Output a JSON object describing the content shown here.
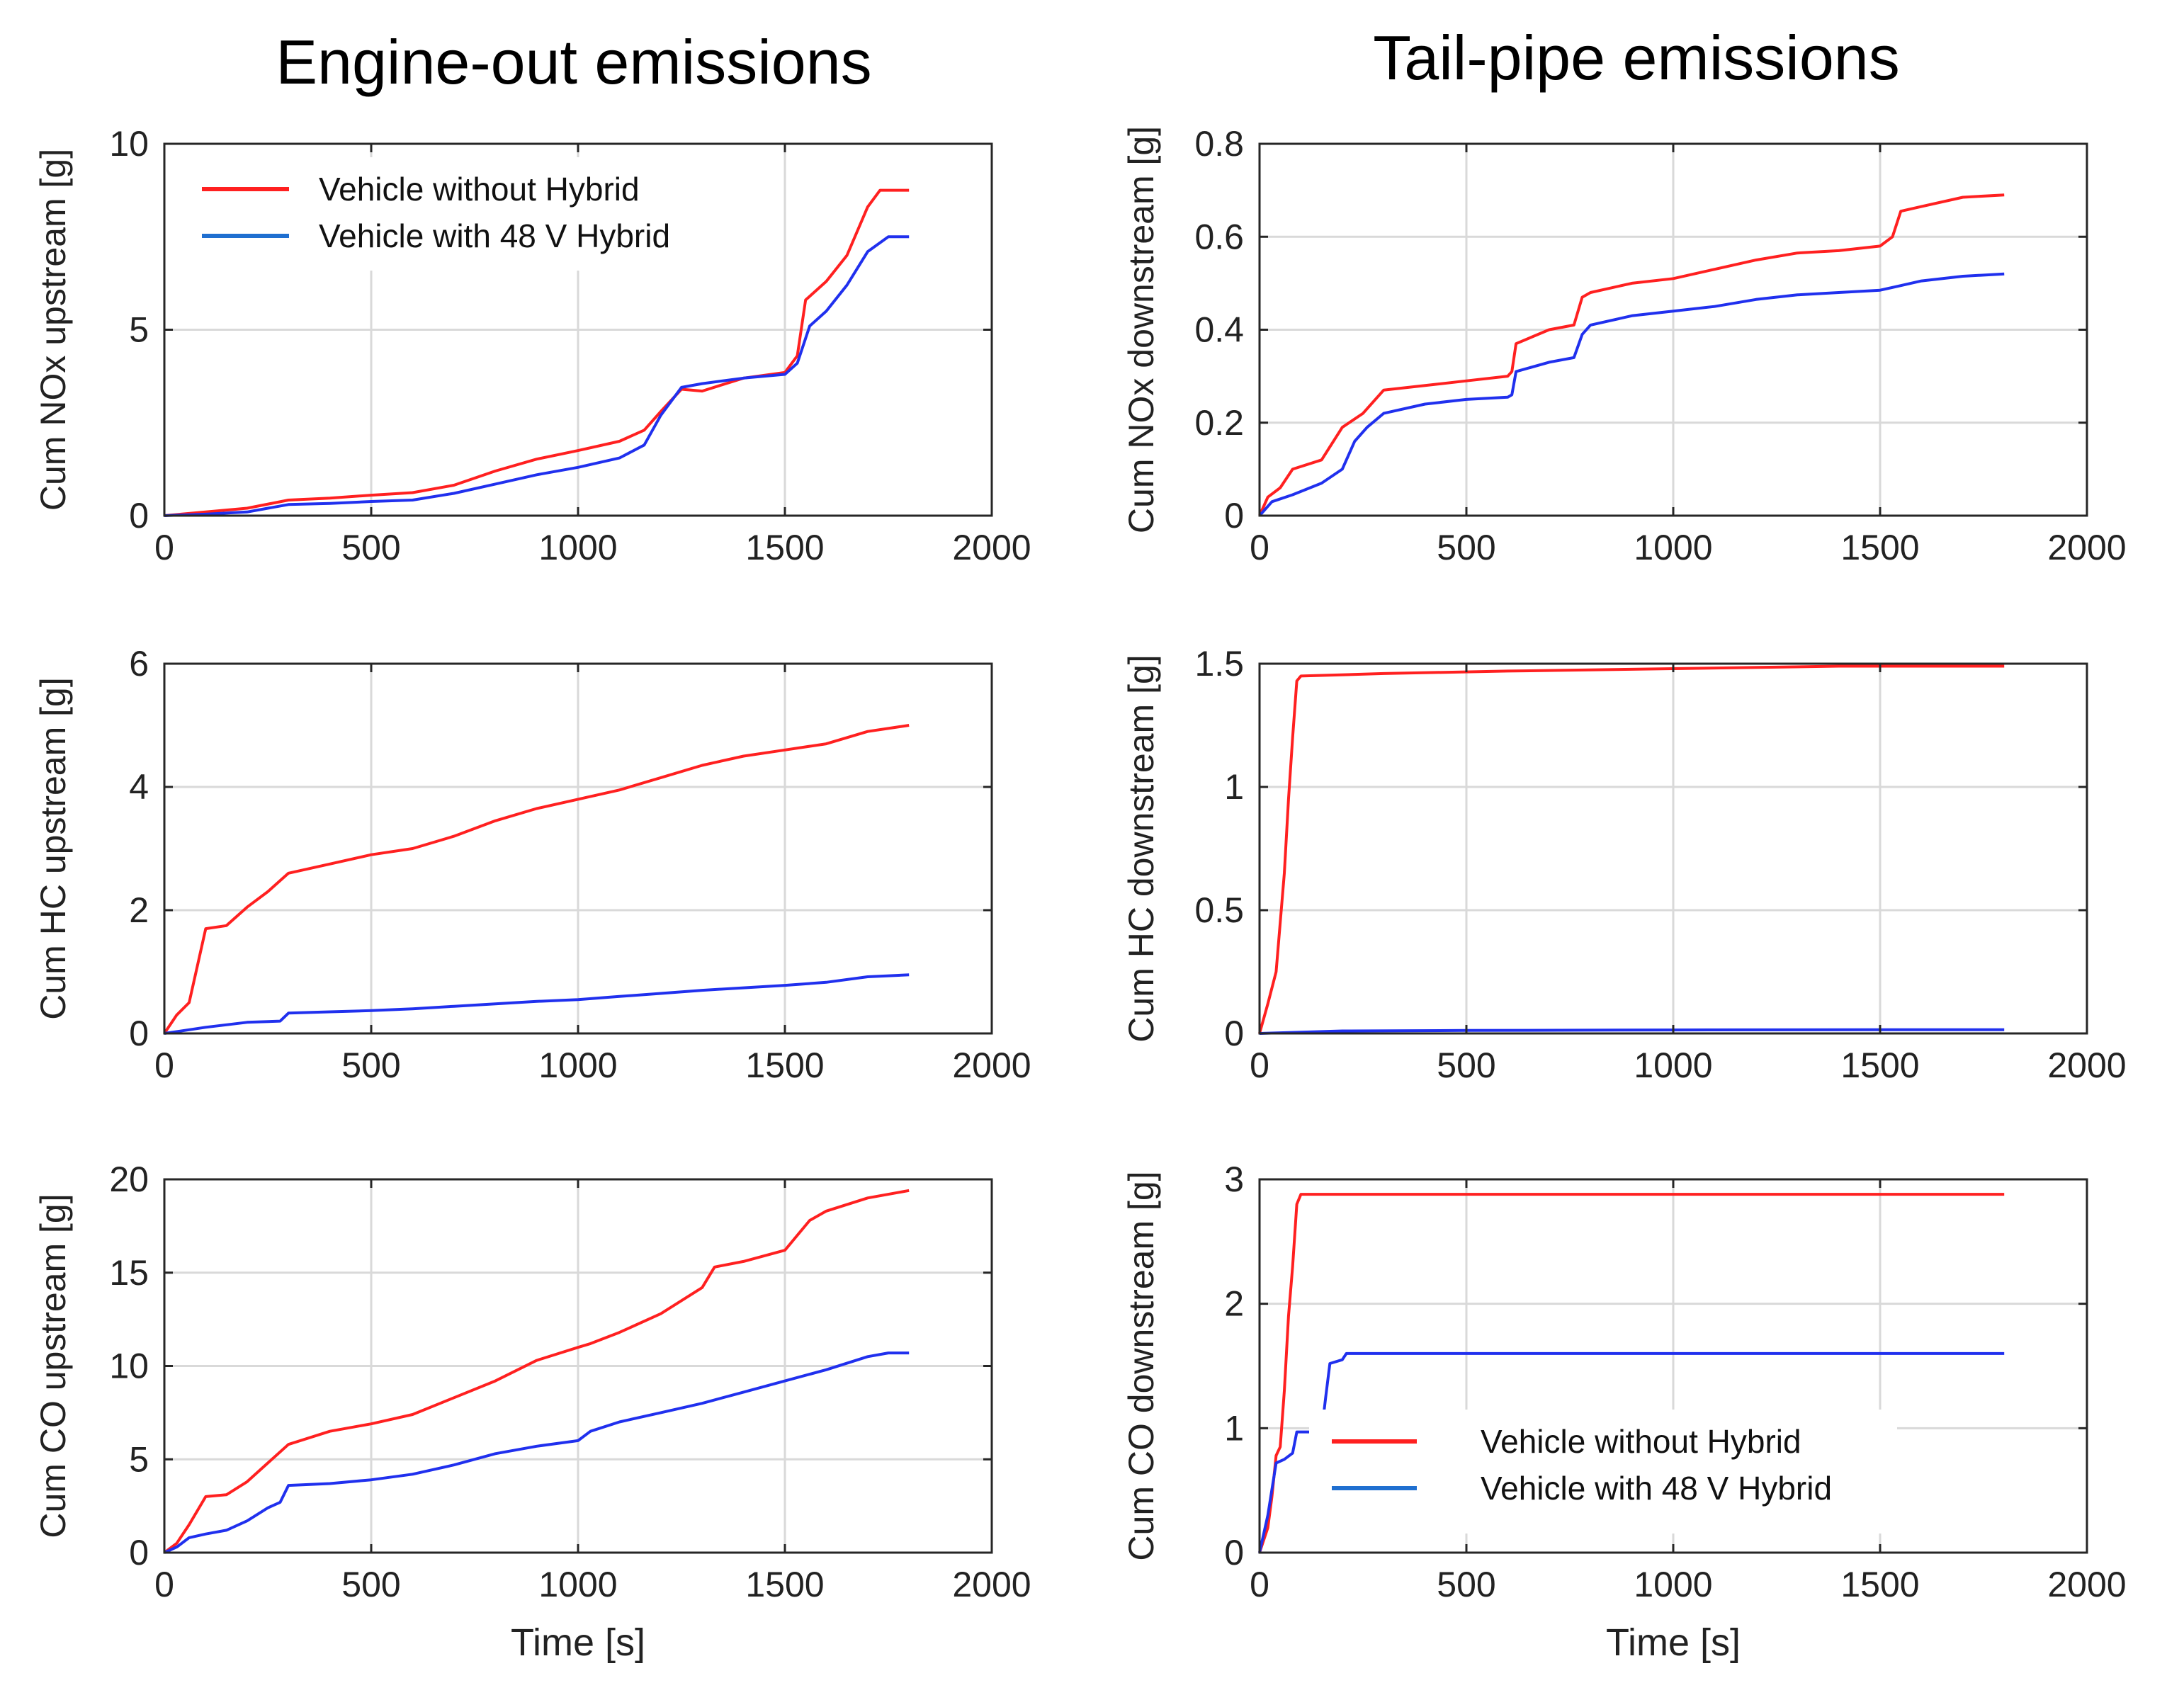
{
  "titles": {
    "left": "Engine-out emissions",
    "right": "Tail-pipe emissions"
  },
  "legend_entries": [
    "Vehicle without Hybrid",
    "Vehicle with 48 V Hybrid"
  ],
  "colors": {
    "without_hybrid": "#ff2020",
    "with_hybrid": "#2030ee",
    "legend_blue": "#1f6fd0"
  },
  "chart_data": [
    {
      "id": "nox-up",
      "type": "line",
      "column": "left",
      "ylabel": "Cum NOx upstream [g]",
      "xlabel": "",
      "xlim": [
        0,
        2000
      ],
      "ylim": [
        0,
        10
      ],
      "xticks": [
        0,
        500,
        1000,
        1500,
        2000
      ],
      "yticks": [
        0,
        5,
        10
      ],
      "xtick_labels": [
        "0",
        "500",
        "1000",
        "1500",
        "2000"
      ],
      "ytick_labels": [
        "0",
        "5",
        "10"
      ],
      "legend": "top-left",
      "grid": true,
      "series": [
        {
          "name": "Vehicle without Hybrid",
          "color": "#ff2020",
          "x": [
            0,
            100,
            200,
            300,
            400,
            500,
            600,
            700,
            800,
            900,
            1000,
            1100,
            1160,
            1200,
            1250,
            1300,
            1400,
            1500,
            1530,
            1550,
            1600,
            1650,
            1700,
            1730,
            1800
          ],
          "y": [
            0,
            0.1,
            0.2,
            0.42,
            0.47,
            0.55,
            0.62,
            0.82,
            1.2,
            1.52,
            1.75,
            2.0,
            2.3,
            2.8,
            3.4,
            3.35,
            3.7,
            3.85,
            4.3,
            5.8,
            6.3,
            7.0,
            8.3,
            8.75,
            8.75
          ]
        },
        {
          "name": "Vehicle with 48 V Hybrid",
          "color": "#2030ee",
          "x": [
            0,
            100,
            200,
            300,
            400,
            500,
            600,
            700,
            800,
            900,
            1000,
            1100,
            1160,
            1200,
            1250,
            1300,
            1400,
            1500,
            1530,
            1560,
            1600,
            1650,
            1700,
            1750,
            1800
          ],
          "y": [
            0,
            0.04,
            0.1,
            0.3,
            0.33,
            0.38,
            0.42,
            0.6,
            0.85,
            1.1,
            1.3,
            1.55,
            1.9,
            2.7,
            3.45,
            3.55,
            3.7,
            3.8,
            4.1,
            5.1,
            5.5,
            6.2,
            7.1,
            7.5,
            7.5
          ]
        }
      ]
    },
    {
      "id": "nox-down",
      "type": "line",
      "column": "right",
      "ylabel": "Cum NOx downstream [g]",
      "xlabel": "",
      "xlim": [
        0,
        2000
      ],
      "ylim": [
        0,
        0.8
      ],
      "xticks": [
        0,
        500,
        1000,
        1500,
        2000
      ],
      "yticks": [
        0,
        0.2,
        0.4,
        0.6,
        0.8
      ],
      "xtick_labels": [
        "0",
        "500",
        "1000",
        "1500",
        "2000"
      ],
      "ytick_labels": [
        "0",
        "0.2",
        "0.4",
        "0.6",
        "0.8"
      ],
      "grid": true,
      "series": [
        {
          "name": "Vehicle without Hybrid",
          "color": "#ff2020",
          "x": [
            0,
            20,
            50,
            80,
            150,
            200,
            250,
            300,
            400,
            500,
            600,
            610,
            620,
            700,
            760,
            780,
            800,
            900,
            1000,
            1100,
            1200,
            1300,
            1400,
            1500,
            1530,
            1550,
            1600,
            1700,
            1800
          ],
          "y": [
            0,
            0.04,
            0.06,
            0.1,
            0.12,
            0.19,
            0.22,
            0.27,
            0.28,
            0.29,
            0.3,
            0.31,
            0.37,
            0.4,
            0.41,
            0.47,
            0.48,
            0.5,
            0.51,
            0.53,
            0.55,
            0.565,
            0.57,
            0.58,
            0.6,
            0.655,
            0.665,
            0.685,
            0.69
          ]
        },
        {
          "name": "Vehicle with 48 V Hybrid",
          "color": "#2030ee",
          "x": [
            0,
            30,
            80,
            150,
            200,
            230,
            260,
            300,
            400,
            500,
            600,
            610,
            620,
            700,
            760,
            780,
            800,
            900,
            1000,
            1100,
            1200,
            1300,
            1400,
            1500,
            1550,
            1600,
            1700,
            1800
          ],
          "y": [
            0,
            0.03,
            0.045,
            0.07,
            0.1,
            0.16,
            0.19,
            0.22,
            0.24,
            0.25,
            0.255,
            0.26,
            0.31,
            0.33,
            0.34,
            0.39,
            0.41,
            0.43,
            0.44,
            0.45,
            0.465,
            0.475,
            0.48,
            0.485,
            0.495,
            0.505,
            0.515,
            0.52
          ]
        }
      ]
    },
    {
      "id": "hc-up",
      "type": "line",
      "column": "left",
      "ylabel": "Cum HC upstream [g]",
      "xlabel": "",
      "xlim": [
        0,
        2000
      ],
      "ylim": [
        0,
        6
      ],
      "xticks": [
        0,
        500,
        1000,
        1500,
        2000
      ],
      "yticks": [
        0,
        2,
        4,
        6
      ],
      "xtick_labels": [
        "0",
        "500",
        "1000",
        "1500",
        "2000"
      ],
      "ytick_labels": [
        "0",
        "2",
        "4",
        "6"
      ],
      "grid": true,
      "series": [
        {
          "name": "Vehicle without Hybrid",
          "color": "#ff2020",
          "x": [
            0,
            30,
            60,
            80,
            100,
            150,
            200,
            250,
            300,
            400,
            500,
            600,
            700,
            800,
            900,
            1000,
            1100,
            1200,
            1300,
            1400,
            1500,
            1600,
            1700,
            1800
          ],
          "y": [
            0,
            0.3,
            0.5,
            1.1,
            1.7,
            1.75,
            2.05,
            2.3,
            2.6,
            2.75,
            2.9,
            3.0,
            3.2,
            3.45,
            3.65,
            3.8,
            3.95,
            4.15,
            4.35,
            4.5,
            4.6,
            4.7,
            4.9,
            5.0
          ]
        },
        {
          "name": "Vehicle with 48 V Hybrid",
          "color": "#2030ee",
          "x": [
            0,
            50,
            100,
            200,
            280,
            300,
            400,
            500,
            600,
            700,
            800,
            900,
            1000,
            1100,
            1200,
            1300,
            1400,
            1500,
            1600,
            1700,
            1800
          ],
          "y": [
            0,
            0.05,
            0.1,
            0.18,
            0.2,
            0.33,
            0.35,
            0.37,
            0.4,
            0.44,
            0.48,
            0.52,
            0.55,
            0.6,
            0.65,
            0.7,
            0.74,
            0.78,
            0.83,
            0.92,
            0.95
          ]
        }
      ]
    },
    {
      "id": "hc-down",
      "type": "line",
      "column": "right",
      "ylabel": "Cum HC downstream [g]",
      "xlabel": "",
      "xlim": [
        0,
        2000
      ],
      "ylim": [
        0,
        1.5
      ],
      "xticks": [
        0,
        500,
        1000,
        1500,
        2000
      ],
      "yticks": [
        0,
        0.5,
        1,
        1.5
      ],
      "xtick_labels": [
        "0",
        "500",
        "1000",
        "1500",
        "2000"
      ],
      "ytick_labels": [
        "0",
        "0.5",
        "1",
        "1.5"
      ],
      "grid": true,
      "series": [
        {
          "name": "Vehicle without Hybrid",
          "color": "#ff2020",
          "x": [
            0,
            20,
            40,
            60,
            70,
            80,
            90,
            100,
            300,
            600,
            1000,
            1400,
            1800
          ],
          "y": [
            0,
            0.12,
            0.25,
            0.65,
            0.95,
            1.2,
            1.43,
            1.45,
            1.46,
            1.47,
            1.48,
            1.49,
            1.49
          ]
        },
        {
          "name": "Vehicle with 48 V Hybrid",
          "color": "#2030ee",
          "x": [
            0,
            100,
            200,
            500,
            1000,
            1500,
            1800
          ],
          "y": [
            0,
            0.005,
            0.01,
            0.012,
            0.014,
            0.015,
            0.015
          ]
        }
      ]
    },
    {
      "id": "co-up",
      "type": "line",
      "column": "left",
      "ylabel": "Cum CO upstream [g]",
      "xlabel": "Time [s]",
      "xlim": [
        0,
        2000
      ],
      "ylim": [
        0,
        20
      ],
      "xticks": [
        0,
        500,
        1000,
        1500,
        2000
      ],
      "yticks": [
        0,
        5,
        10,
        15,
        20
      ],
      "xtick_labels": [
        "0",
        "500",
        "1000",
        "1500",
        "2000"
      ],
      "ytick_labels": [
        "0",
        "5",
        "10",
        "15",
        "20"
      ],
      "grid": true,
      "series": [
        {
          "name": "Vehicle without Hybrid",
          "color": "#ff2020",
          "x": [
            0,
            30,
            60,
            100,
            150,
            200,
            250,
            300,
            400,
            500,
            600,
            700,
            800,
            900,
            1000,
            1030,
            1100,
            1200,
            1300,
            1330,
            1400,
            1500,
            1530,
            1560,
            1600,
            1700,
            1800
          ],
          "y": [
            0,
            0.5,
            1.5,
            3.0,
            3.1,
            3.8,
            4.8,
            5.8,
            6.5,
            6.9,
            7.4,
            8.3,
            9.2,
            10.3,
            11.0,
            11.2,
            11.8,
            12.8,
            14.2,
            15.3,
            15.6,
            16.2,
            17.0,
            17.8,
            18.3,
            19.0,
            19.4
          ]
        },
        {
          "name": "Vehicle with 48 V Hybrid",
          "color": "#2030ee",
          "x": [
            0,
            30,
            60,
            100,
            150,
            200,
            250,
            280,
            300,
            400,
            500,
            600,
            700,
            800,
            900,
            1000,
            1030,
            1100,
            1200,
            1300,
            1400,
            1500,
            1600,
            1700,
            1750,
            1800
          ],
          "y": [
            0,
            0.3,
            0.8,
            1.0,
            1.2,
            1.7,
            2.4,
            2.7,
            3.6,
            3.7,
            3.9,
            4.2,
            4.7,
            5.3,
            5.7,
            6.0,
            6.5,
            7.0,
            7.5,
            8.0,
            8.6,
            9.2,
            9.8,
            10.5,
            10.7,
            10.7
          ]
        }
      ]
    },
    {
      "id": "co-down",
      "type": "line",
      "column": "right",
      "ylabel": "Cum CO downstream [g]",
      "xlabel": "Time [s]",
      "xlim": [
        0,
        2000
      ],
      "ylim": [
        0,
        3
      ],
      "xticks": [
        0,
        500,
        1000,
        1500,
        2000
      ],
      "yticks": [
        0,
        1,
        2,
        3
      ],
      "xtick_labels": [
        "0",
        "500",
        "1000",
        "1500",
        "2000"
      ],
      "ytick_labels": [
        "0",
        "1",
        "2",
        "3"
      ],
      "legend": "bottom-center",
      "grid": true,
      "series": [
        {
          "name": "Vehicle without Hybrid",
          "color": "#ff2020",
          "x": [
            0,
            20,
            30,
            40,
            50,
            60,
            70,
            80,
            90,
            100,
            300,
            800,
            1300,
            1800
          ],
          "y": [
            0,
            0.2,
            0.45,
            0.78,
            0.85,
            1.3,
            1.9,
            2.3,
            2.8,
            2.88,
            2.88,
            2.88,
            2.88,
            2.88
          ]
        },
        {
          "name": "Vehicle with 48 V Hybrid",
          "color": "#2030ee",
          "x": [
            0,
            20,
            40,
            60,
            80,
            90,
            100,
            150,
            160,
            170,
            200,
            210,
            400,
            1000,
            1800
          ],
          "y": [
            0,
            0.3,
            0.72,
            0.75,
            0.8,
            0.97,
            0.97,
            0.97,
            1.25,
            1.52,
            1.55,
            1.6,
            1.6,
            1.6,
            1.6
          ]
        }
      ]
    }
  ]
}
